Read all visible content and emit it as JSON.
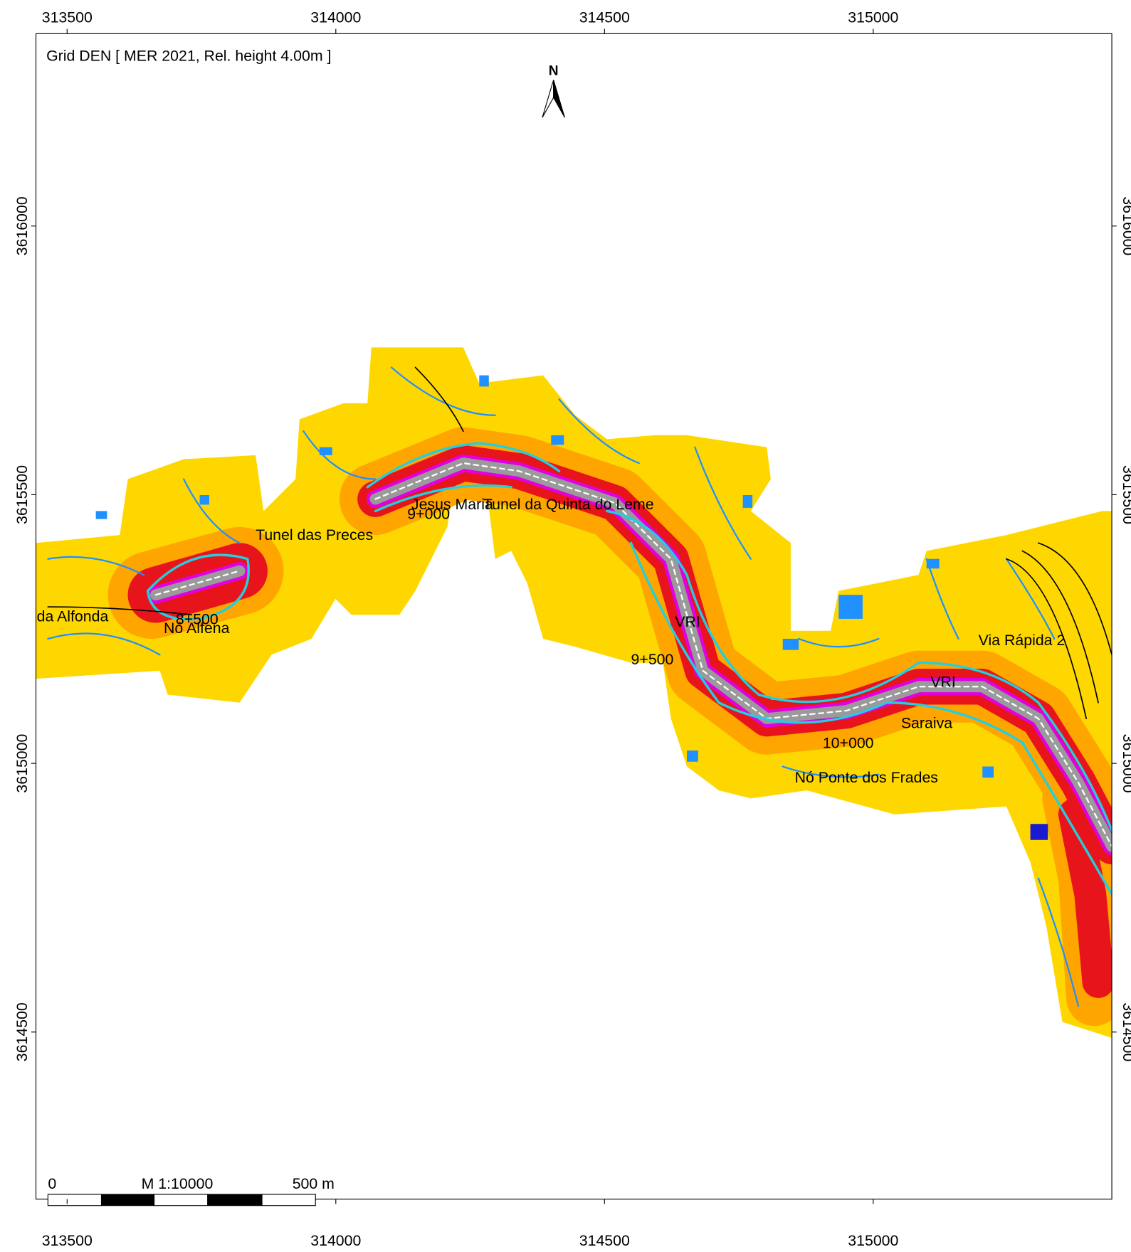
{
  "title": "Grid DEN  [ MER 2021, Rel. height  4.00m ]",
  "north": "N",
  "axes": {
    "xlim": [
      313442,
      315444
    ],
    "ylim": [
      3614189,
      3616358
    ],
    "xticks": [
      313500,
      314000,
      314500,
      315000
    ],
    "yticks": [
      3614500,
      3615000,
      3615500,
      3616000
    ]
  },
  "scale_bar": {
    "start": "0",
    "scale": "M 1:10000",
    "end": "500 m"
  },
  "labels": [
    "da Alfonda",
    "8+500",
    "Nó Alfena",
    "Tunel das Preces",
    "Jesus Maria",
    "9+000",
    "Tunel da Quinta do Leme",
    "9+500",
    "VRI",
    "Via Rápida 2",
    "VRI",
    "Saraiva",
    "10+000",
    "Nó Ponte dos Frades"
  ]
}
